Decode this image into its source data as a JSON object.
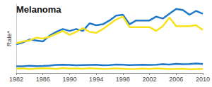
{
  "chart_data": {
    "type": "line",
    "title": "Melanoma",
    "y_label": "Rate*",
    "x": [
      1982,
      1983,
      1984,
      1985,
      1986,
      1987,
      1988,
      1989,
      1990,
      1991,
      1992,
      1993,
      1994,
      1995,
      1996,
      1997,
      1998,
      1999,
      2000,
      2001,
      2002,
      2003,
      2004,
      2005,
      2006,
      2007,
      2008,
      2009,
      2010
    ],
    "series": [
      {
        "color": "#1f78c8",
        "values": [
          15,
          16,
          17.5,
          17,
          16.5,
          19.5,
          21.5,
          23,
          22,
          23,
          22,
          26,
          25,
          25.5,
          27.5,
          30,
          30.5,
          25.5,
          27.5,
          27.5,
          27.5,
          29.5,
          28.5,
          31,
          33.5,
          33,
          30.5,
          32.5,
          31
        ]
      },
      {
        "color": "#f7e21b",
        "values": [
          15.5,
          16.5,
          17,
          18.5,
          18,
          19,
          20.5,
          22,
          20,
          21.5,
          23.5,
          21.5,
          21,
          23,
          25.5,
          28,
          29.5,
          24,
          24,
          24,
          24,
          22,
          24.5,
          29,
          24.5,
          24.5,
          24.5,
          25,
          22.5
        ]
      },
      {
        "color": "#1f78c8",
        "values": [
          3.5,
          3.5,
          3.8,
          3.6,
          3.7,
          3.9,
          4.2,
          4.3,
          4.2,
          4.0,
          4.1,
          4.2,
          4.3,
          4.0,
          4.1,
          4.4,
          4.3,
          4.1,
          4.2,
          4.3,
          4.2,
          4.3,
          4.6,
          4.4,
          4.8,
          4.6,
          4.7,
          5.0,
          4.7
        ]
      },
      {
        "color": "#f7e21b",
        "values": [
          2.2,
          2.4,
          2.0,
          2.3,
          2.5,
          2.4,
          2.1,
          2.6,
          2.3,
          2.4,
          2.2,
          2.5,
          2.3,
          2.1,
          2.2,
          2.4,
          2.2,
          2.0,
          2.1,
          2.3,
          2.1,
          2.4,
          2.2,
          2.0,
          2.1,
          2.2,
          1.9,
          2.0,
          2.1
        ]
      }
    ],
    "xlim": [
      1982,
      2010
    ],
    "xticks": [
      1982,
      1986,
      1990,
      1994,
      1998,
      2002,
      2006,
      2010
    ],
    "ylim": [
      0,
      36
    ],
    "tick_labels": "x",
    "grid": false
  }
}
